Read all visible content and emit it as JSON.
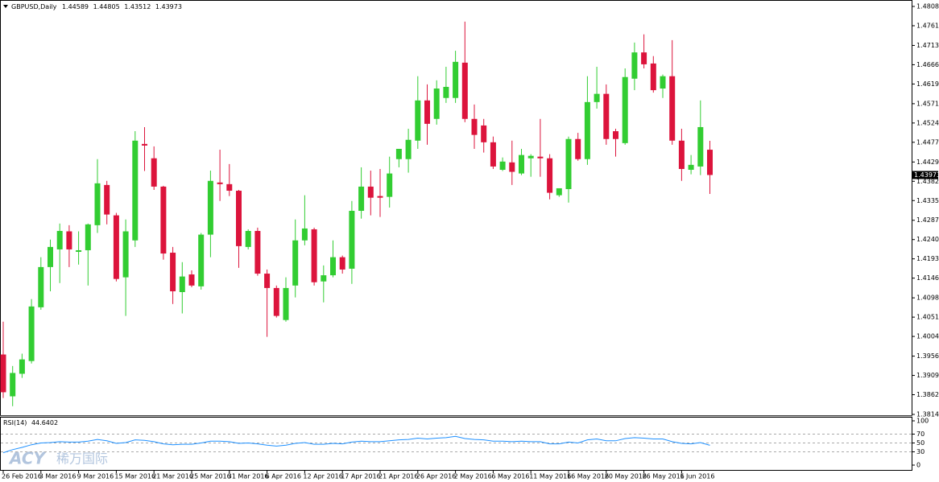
{
  "chart_data": [
    {
      "type": "candlestick",
      "title": "GBPUSD,Daily",
      "watermark": "ACY",
      "watermark_cn": "稀万国际",
      "up_color": "#32cd32",
      "down_color": "#dc143c",
      "categories": [
        "26 Feb 2016",
        null,
        null,
        null,
        "3 Mar 2016",
        null,
        null,
        null,
        "9 Mar 2016",
        null,
        null,
        null,
        "15 Mar 2016",
        null,
        null,
        null,
        "21 Mar 2016",
        null,
        null,
        null,
        "25 Mar 2016",
        null,
        null,
        null,
        "31 Mar 2016",
        null,
        null,
        null,
        "6 Apr 2016",
        null,
        null,
        null,
        "12 Apr 2016",
        null,
        null,
        null,
        "17 Apr 2016",
        null,
        null,
        null,
        "21 Apr 2016",
        null,
        null,
        null,
        "26 Apr 2016",
        null,
        null,
        null,
        "2 May 2016",
        null,
        null,
        null,
        "6 May 2016",
        null,
        null,
        null,
        "11 May 2016",
        null,
        null,
        null,
        "16 May 2016",
        null,
        null,
        null,
        "20 May 2016",
        null,
        null,
        null,
        "26 May 2016",
        null,
        null,
        null,
        "1 Jun 2016",
        null,
        null,
        null
      ],
      "open": [
        1.396,
        1.3858,
        1.3913,
        1.3944,
        1.4075,
        1.4173,
        1.4216,
        1.426,
        1.421,
        1.4214,
        1.4275,
        1.4373,
        1.4299,
        1.4148,
        1.4238,
        1.4473,
        1.4438,
        1.4369,
        1.4208,
        1.4112,
        1.4155,
        1.4126,
        1.4252,
        1.4379,
        1.4375,
        1.4359,
        1.4222,
        1.4261,
        1.4157,
        1.4122,
        1.4044,
        1.4128,
        1.4238,
        1.4265,
        1.4138,
        1.4153,
        1.4197,
        1.4169,
        1.431,
        1.4369,
        1.4346,
        1.4344,
        1.4436,
        1.4436,
        1.4481,
        1.4579,
        1.4534,
        1.4585,
        1.4585,
        1.4671,
        1.4534,
        1.4518,
        1.4477,
        1.441,
        1.4428,
        1.4401,
        1.4438,
        1.4442,
        1.4438,
        1.4348,
        1.4363,
        1.4485,
        1.4436,
        1.4575,
        1.4595,
        1.4504,
        1.4475,
        1.4632,
        1.4696,
        1.4669,
        1.4608,
        1.4638,
        1.4481,
        1.441,
        1.4418,
        1.44589
      ],
      "high": [
        1.404,
        1.3932,
        1.3962,
        1.4095,
        1.4197,
        1.424,
        1.4279,
        1.4275,
        1.426,
        1.4279,
        1.4436,
        1.4383,
        1.4305,
        1.4289,
        1.4504,
        1.4514,
        1.4467,
        1.4371,
        1.4222,
        1.4185,
        1.4165,
        1.4256,
        1.4408,
        1.4459,
        1.4424,
        1.4361,
        1.4265,
        1.4269,
        1.4167,
        1.4128,
        1.4148,
        1.4289,
        1.4348,
        1.4269,
        1.4177,
        1.4238,
        1.4201,
        1.4334,
        1.4416,
        1.4408,
        1.4412,
        1.4442,
        1.4461,
        1.451,
        1.4638,
        1.4618,
        1.4628,
        1.4661,
        1.47,
        1.4771,
        1.4569,
        1.4534,
        1.4491,
        1.444,
        1.4481,
        1.4461,
        1.4448,
        1.4534,
        1.4448,
        1.4363,
        1.4491,
        1.45,
        1.4638,
        1.4661,
        1.4618,
        1.451,
        1.4657,
        1.472,
        1.474,
        1.4687,
        1.4642,
        1.4726,
        1.451,
        1.4446,
        1.4579,
        1.44805
      ],
      "low": [
        1.3854,
        1.3834,
        1.3903,
        1.3938,
        1.4069,
        1.4114,
        1.4134,
        1.4173,
        1.4179,
        1.4128,
        1.4256,
        1.4277,
        1.4138,
        1.4054,
        1.4222,
        1.4407,
        1.4361,
        1.4191,
        1.4083,
        1.406,
        1.4124,
        1.4118,
        1.4197,
        1.4334,
        1.4346,
        1.4171,
        1.4216,
        1.4152,
        1.4003,
        1.405,
        1.404,
        1.4099,
        1.4226,
        1.4128,
        1.4087,
        1.4148,
        1.4157,
        1.4132,
        1.4291,
        1.4299,
        1.4295,
        1.4318,
        1.4416,
        1.4403,
        1.4461,
        1.4471,
        1.452,
        1.4573,
        1.4573,
        1.4526,
        1.4461,
        1.4452,
        1.4412,
        1.4407,
        1.4373,
        1.4397,
        1.4393,
        1.4393,
        1.4338,
        1.4344,
        1.433,
        1.4432,
        1.4422,
        1.4559,
        1.4471,
        1.4442,
        1.4471,
        1.4604,
        1.4657,
        1.4598,
        1.4585,
        1.4471,
        1.4383,
        1.4399,
        1.4397,
        1.43512
      ],
      "close": [
        1.3868,
        1.3915,
        1.3948,
        1.4077,
        1.4173,
        1.4222,
        1.4261,
        1.4216,
        1.4214,
        1.4277,
        1.4377,
        1.4301,
        1.4144,
        1.426,
        1.4481,
        1.4469,
        1.4369,
        1.4206,
        1.4114,
        1.415,
        1.4128,
        1.4252,
        1.4383,
        1.4375,
        1.4359,
        1.4224,
        1.4261,
        1.4157,
        1.4122,
        1.4054,
        1.4122,
        1.4238,
        1.4267,
        1.4136,
        1.4153,
        1.4197,
        1.4167,
        1.431,
        1.4369,
        1.4342,
        1.4342,
        1.4401,
        1.4461,
        1.4483,
        1.4579,
        1.4522,
        1.4608,
        1.4612,
        1.4673,
        1.4534,
        1.4495,
        1.4477,
        1.4418,
        1.443,
        1.4405,
        1.4446,
        1.4444,
        1.4438,
        1.4354,
        1.4365,
        1.4485,
        1.4436,
        1.4575,
        1.4595,
        1.4485,
        1.4485,
        1.4636,
        1.4696,
        1.4667,
        1.4604,
        1.4638,
        1.4481,
        1.4412,
        1.4422,
        1.4514,
        1.43973
      ],
      "ylim": [
        1.3814,
        1.4808
      ],
      "yticks": [
        {
          "value": 1.4808,
          "label": "1.48080"
        },
        {
          "value": 1.4761,
          "label": "1.47610"
        },
        {
          "value": 1.4713,
          "label": "1.47130"
        },
        {
          "value": 1.4666,
          "label": "1.46660"
        },
        {
          "value": 1.4619,
          "label": "1.46190"
        },
        {
          "value": 1.4571,
          "label": "1.45710"
        },
        {
          "value": 1.4524,
          "label": "1.45240"
        },
        {
          "value": 1.4477,
          "label": "1.44770"
        },
        {
          "value": 1.4429,
          "label": "1.44290"
        },
        {
          "value": 1.4382,
          "label": "1.43820"
        },
        {
          "value": 1.4335,
          "label": "1.43350"
        },
        {
          "value": 1.4287,
          "label": "1.42870"
        },
        {
          "value": 1.424,
          "label": "1.42400"
        },
        {
          "value": 1.4193,
          "label": "1.41930"
        },
        {
          "value": 1.4146,
          "label": "1.41460"
        },
        {
          "value": 1.4098,
          "label": "1.40980"
        },
        {
          "value": 1.4051,
          "label": "1.40510"
        },
        {
          "value": 1.4004,
          "label": "1.40040"
        },
        {
          "value": 1.3956,
          "label": "1.39560"
        },
        {
          "value": 1.3909,
          "label": "1.39090"
        },
        {
          "value": 1.3862,
          "label": "1.38620"
        },
        {
          "value": 1.3814,
          "label": "1.38140"
        }
      ]
    },
    {
      "type": "line",
      "title": "RSI(14)",
      "color": "#1e90ff",
      "values": [
        28,
        35,
        40,
        46,
        50,
        51,
        53,
        52,
        52,
        54,
        58,
        55,
        49,
        51,
        57,
        56,
        53,
        48,
        46,
        47,
        47,
        50,
        54,
        54,
        53,
        49,
        50,
        48,
        45,
        43,
        45,
        49,
        51,
        47,
        47,
        49,
        48,
        52,
        54,
        53,
        53,
        55,
        57,
        58,
        61,
        59,
        61,
        62,
        65,
        60,
        58,
        57,
        54,
        54,
        53,
        54,
        53,
        53,
        48,
        48,
        52,
        50,
        57,
        59,
        55,
        55,
        60,
        62,
        61,
        59,
        59,
        53,
        49,
        48,
        51,
        44.6402
      ],
      "ylim": [
        0,
        100
      ],
      "yticks": [
        100,
        70,
        50,
        30,
        0
      ],
      "levels": [
        70,
        50,
        30
      ]
    }
  ]
}
